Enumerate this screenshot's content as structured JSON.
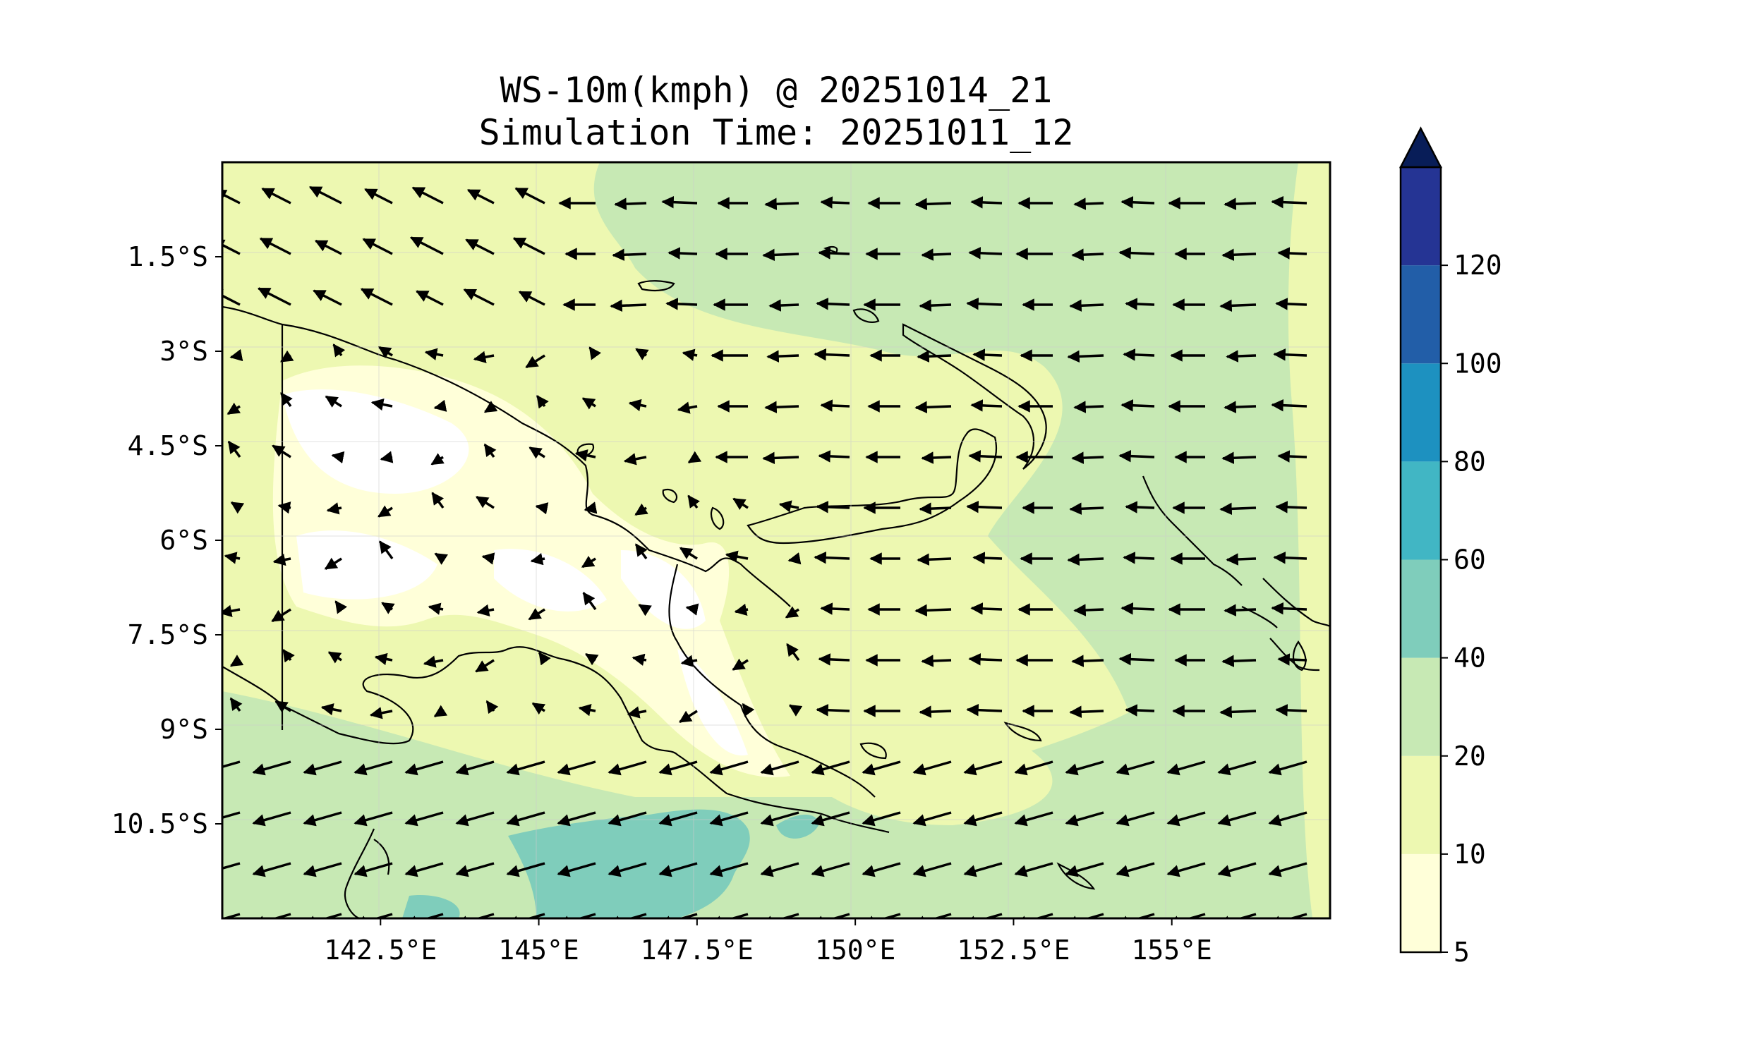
{
  "title": {
    "line1": "WS-10m(kmph) @ 20251014_21",
    "line2": "Simulation Time: 20251011_12"
  },
  "chart_data": {
    "type": "heatmap",
    "variable": "WS-10m(kmph)",
    "x_range_lon_E": [
      140.0,
      157.5
    ],
    "y_range_lat_S": [
      12.0,
      0.0
    ],
    "x_ticks": [
      {
        "value": 142.5,
        "label": "142.5°E"
      },
      {
        "value": 145.0,
        "label": "145°E"
      },
      {
        "value": 147.5,
        "label": "147.5°E"
      },
      {
        "value": 150.0,
        "label": "150°E"
      },
      {
        "value": 152.5,
        "label": "152.5°E"
      },
      {
        "value": 155.0,
        "label": "155°E"
      }
    ],
    "y_ticks": [
      {
        "value": 1.5,
        "label": "1.5°S"
      },
      {
        "value": 3.0,
        "label": "3°S"
      },
      {
        "value": 4.5,
        "label": "4.5°S"
      },
      {
        "value": 6.0,
        "label": "6°S"
      },
      {
        "value": 7.5,
        "label": "7.5°S"
      },
      {
        "value": 9.0,
        "label": "9°S"
      },
      {
        "value": 10.5,
        "label": "10.5°S"
      }
    ],
    "grid": true,
    "colorbar": {
      "levels": [
        5,
        10,
        20,
        40,
        60,
        80,
        100,
        120
      ],
      "labels": [
        "5",
        "10",
        "20",
        "40",
        "60",
        "80",
        "100",
        "120"
      ],
      "colors": [
        "#ffffd9",
        "#edf8b1",
        "#c7e9b4",
        "#7fcdbb",
        "#41b6c4",
        "#1d91c0",
        "#225ea8",
        "#253494"
      ],
      "extend_color": "#081d58",
      "extend": "max"
    },
    "vectors": "wind arrows, predominantly easterly over sea, weak over land"
  }
}
